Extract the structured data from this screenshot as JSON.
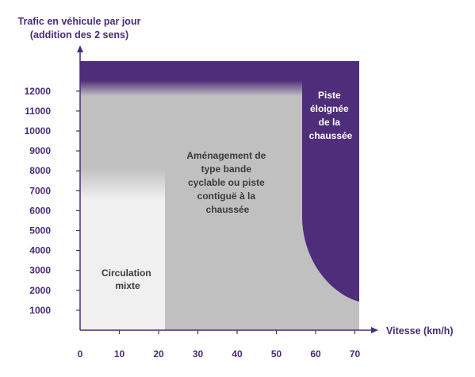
{
  "chart_data": {
    "type": "area",
    "title": "",
    "ylabel": [
      "Trafic en véhicule par jour",
      "(addition des 2 sens)"
    ],
    "xlabel": "Vitesse (km/h)",
    "xlim": [
      0,
      72
    ],
    "ylim": [
      0,
      12000
    ],
    "x_ticks": [
      "0",
      "10",
      "20",
      "30",
      "40",
      "50",
      "60",
      "70"
    ],
    "y_ticks": [
      "1000",
      "2000",
      "3000",
      "4000",
      "5000",
      "6000",
      "7000",
      "8000",
      "9000",
      "10000",
      "11000",
      "12000"
    ],
    "regions": [
      {
        "name": "Circulation mixte",
        "lines": [
          "Circulation",
          "mixte"
        ],
        "x_range": [
          0,
          22
        ],
        "y_range": [
          0,
          7000
        ],
        "color": "#f0f0f0"
      },
      {
        "name": "Aménagement de type bande cyclable ou piste contiguë à la chaussée",
        "lines": [
          "Aménagement de",
          "type bande",
          "cyclable ou piste",
          "contiguë à la",
          "chaussée"
        ],
        "x_range": [
          0,
          57
        ],
        "y_range": [
          0,
          11500
        ],
        "color": "#c0c0c0"
      },
      {
        "name": "Piste éloignée de la chaussée",
        "lines": [
          "Piste",
          "éloignée",
          "de la",
          "chaussée"
        ],
        "x_range": [
          57,
          72
        ],
        "y_range": [
          0,
          12000
        ],
        "color": "#4e2d7a"
      }
    ],
    "colors": {
      "axis": "#4a2b78",
      "purple": "#4e2d7a",
      "grey": "#c0c0c0",
      "light": "#f0f0f0"
    }
  }
}
